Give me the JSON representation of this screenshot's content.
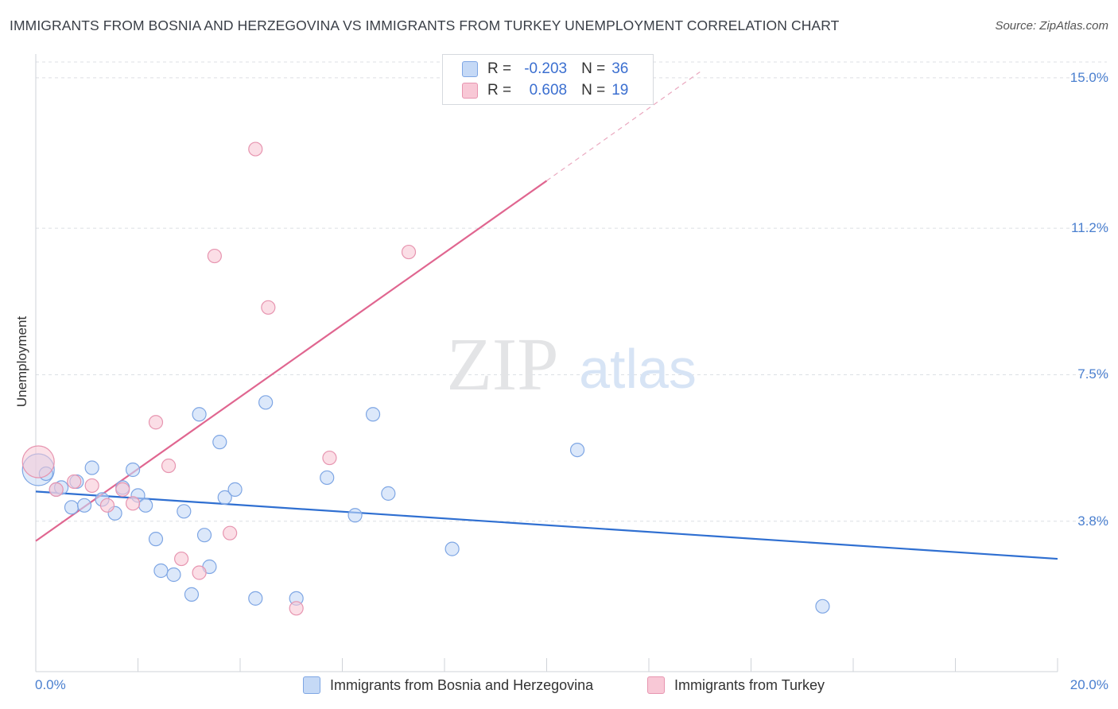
{
  "header": {
    "title": "IMMIGRANTS FROM BOSNIA AND HERZEGOVINA VS IMMIGRANTS FROM TURKEY UNEMPLOYMENT CORRELATION CHART",
    "source": "Source: ZipAtlas.com"
  },
  "watermark": {
    "zip": "ZIP",
    "atlas": "atlas"
  },
  "colors": {
    "blue_fill": "#c5d9f6",
    "blue_stroke": "#7ea6e4",
    "blue_line": "#2f6fd1",
    "pink_fill": "#f8c8d6",
    "pink_stroke": "#e795b0",
    "pink_line": "#e06690",
    "grid": "#dcdfe4",
    "tick_text": "#4a7fcf"
  },
  "legend": {
    "rows": [
      {
        "r_label": "R =",
        "r_value": "-0.203",
        "n_label": "N =",
        "n_value": "36"
      },
      {
        "r_label": "R =",
        "r_value": "0.608",
        "n_label": "N =",
        "n_value": "19"
      }
    ],
    "bottom": [
      {
        "label": "Immigrants from Bosnia and Herzegovina"
      },
      {
        "label": "Immigrants from Turkey"
      }
    ]
  },
  "chart_data": {
    "type": "scatter",
    "title": "IMMIGRANTS FROM BOSNIA AND HERZEGOVINA VS IMMIGRANTS FROM TURKEY UNEMPLOYMENT CORRELATION CHART",
    "xlabel": "",
    "ylabel": "Unemployment",
    "xlim": [
      0,
      20
    ],
    "ylim": [
      0,
      15.4
    ],
    "x_tick_labels": [
      {
        "value": 0,
        "label": "0.0%"
      },
      {
        "value": 20,
        "label": "20.0%"
      }
    ],
    "y_tick_labels": [
      {
        "value": 3.8,
        "label": "3.8%"
      },
      {
        "value": 7.5,
        "label": "7.5%"
      },
      {
        "value": 11.2,
        "label": "11.2%"
      },
      {
        "value": 15.0,
        "label": "15.0%"
      }
    ],
    "series": [
      {
        "name": "Immigrants from Bosnia and Herzegovina",
        "color": "#7ea6e4",
        "R": -0.203,
        "N": 36,
        "trend": {
          "x": [
            0,
            20
          ],
          "y": [
            4.55,
            2.85
          ]
        },
        "points": [
          {
            "x": 0.05,
            "y": 5.1,
            "big": true
          },
          {
            "x": 0.2,
            "y": 5.0
          },
          {
            "x": 0.4,
            "y": 4.6
          },
          {
            "x": 0.5,
            "y": 4.65
          },
          {
            "x": 0.7,
            "y": 4.15
          },
          {
            "x": 0.8,
            "y": 4.8
          },
          {
            "x": 0.95,
            "y": 4.2
          },
          {
            "x": 1.1,
            "y": 5.15
          },
          {
            "x": 1.3,
            "y": 4.35
          },
          {
            "x": 1.55,
            "y": 4.0
          },
          {
            "x": 1.7,
            "y": 4.65
          },
          {
            "x": 1.9,
            "y": 5.1
          },
          {
            "x": 2.0,
            "y": 4.45
          },
          {
            "x": 2.15,
            "y": 4.2
          },
          {
            "x": 2.35,
            "y": 3.35
          },
          {
            "x": 2.45,
            "y": 2.55
          },
          {
            "x": 2.7,
            "y": 2.45
          },
          {
            "x": 2.9,
            "y": 4.05
          },
          {
            "x": 3.05,
            "y": 1.95
          },
          {
            "x": 3.2,
            "y": 6.5
          },
          {
            "x": 3.3,
            "y": 3.45
          },
          {
            "x": 3.4,
            "y": 2.65
          },
          {
            "x": 3.6,
            "y": 5.8
          },
          {
            "x": 3.7,
            "y": 4.4
          },
          {
            "x": 3.9,
            "y": 4.6
          },
          {
            "x": 4.3,
            "y": 1.85
          },
          {
            "x": 4.5,
            "y": 6.8
          },
          {
            "x": 5.1,
            "y": 1.85
          },
          {
            "x": 5.7,
            "y": 4.9
          },
          {
            "x": 6.25,
            "y": 3.95
          },
          {
            "x": 6.6,
            "y": 6.5
          },
          {
            "x": 6.9,
            "y": 4.5
          },
          {
            "x": 8.15,
            "y": 3.1
          },
          {
            "x": 10.6,
            "y": 5.6
          },
          {
            "x": 15.4,
            "y": 1.65
          }
        ]
      },
      {
        "name": "Immigrants from Turkey",
        "color": "#e795b0",
        "R": 0.608,
        "N": 19,
        "trend": {
          "x": [
            0,
            10.0
          ],
          "y": [
            3.3,
            12.4
          ]
        },
        "trend_dashed": {
          "x": [
            10.0,
            13.0
          ],
          "y": [
            12.4,
            15.15
          ]
        },
        "points": [
          {
            "x": 0.05,
            "y": 5.3,
            "big": true
          },
          {
            "x": 0.4,
            "y": 4.6
          },
          {
            "x": 0.75,
            "y": 4.8
          },
          {
            "x": 1.1,
            "y": 4.7
          },
          {
            "x": 1.4,
            "y": 4.2
          },
          {
            "x": 1.7,
            "y": 4.6
          },
          {
            "x": 1.9,
            "y": 4.25
          },
          {
            "x": 2.35,
            "y": 6.3
          },
          {
            "x": 2.6,
            "y": 5.2
          },
          {
            "x": 2.85,
            "y": 2.85
          },
          {
            "x": 3.2,
            "y": 2.5
          },
          {
            "x": 3.5,
            "y": 10.5
          },
          {
            "x": 3.8,
            "y": 3.5
          },
          {
            "x": 4.3,
            "y": 13.2
          },
          {
            "x": 4.55,
            "y": 9.2
          },
          {
            "x": 5.1,
            "y": 1.6
          },
          {
            "x": 5.75,
            "y": 5.4
          },
          {
            "x": 7.3,
            "y": 10.6
          }
        ]
      }
    ]
  }
}
